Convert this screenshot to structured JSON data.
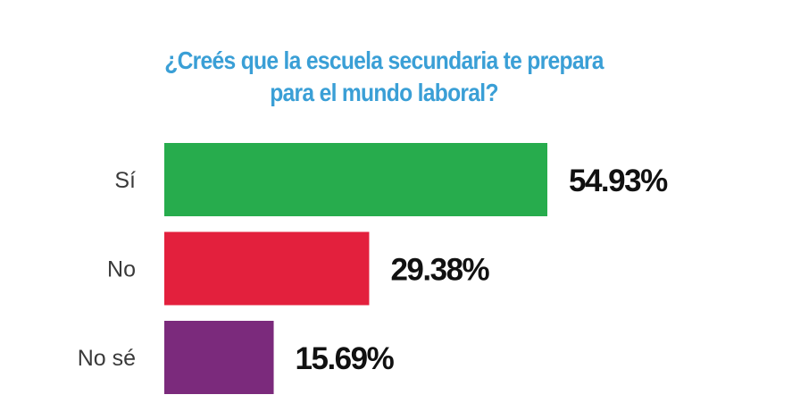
{
  "chart_data": {
    "type": "bar",
    "orientation": "horizontal",
    "title_lines": [
      "¿Creés que la escuela secundaria te prepara",
      "para el mundo laboral?"
    ],
    "categories": [
      "Sí",
      "No",
      "No sé"
    ],
    "values": [
      54.93,
      29.38,
      15.69
    ],
    "value_labels": [
      "54.93%",
      "29.38%",
      "15.69%"
    ],
    "colors": [
      "#27ac4d",
      "#e3203d",
      "#7b2a7c"
    ],
    "title_color": "#3a9fd6",
    "xlim": [
      0,
      100
    ],
    "grid": false,
    "legend": "none"
  }
}
